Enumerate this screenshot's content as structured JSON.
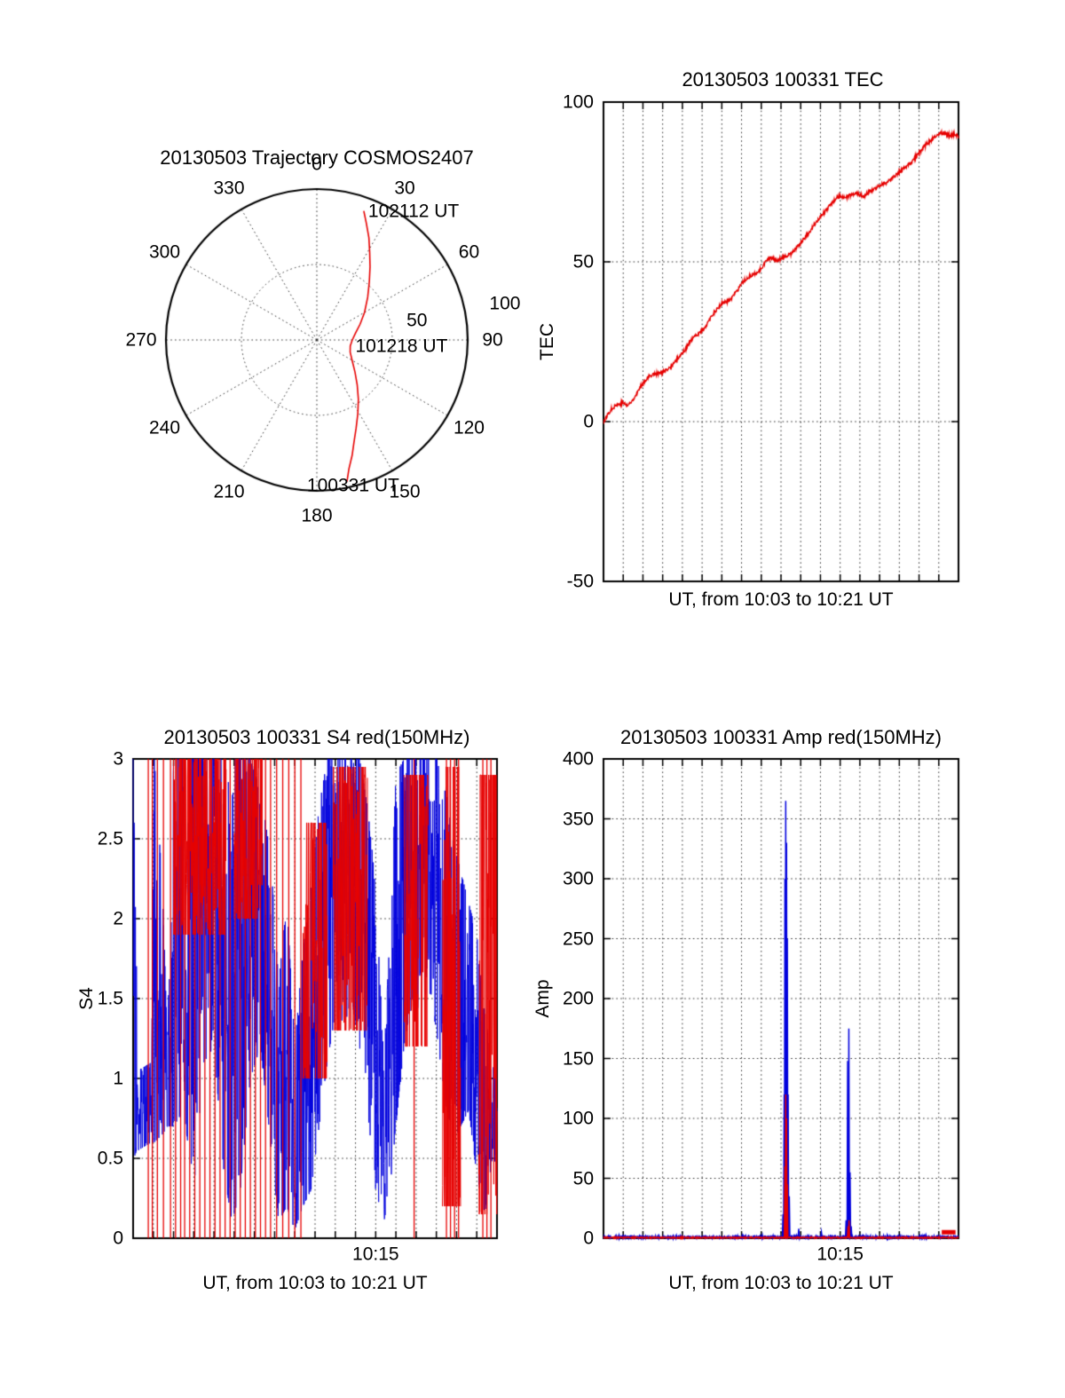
{
  "colors": {
    "red": "#e60000",
    "blue": "#0000dd",
    "grid": "#333333",
    "axis": "#000000",
    "background": "#ffffff"
  },
  "chart_data": [
    {
      "id": "trajectory",
      "type": "polar-trajectory",
      "title": "20130503 Trajectory COSMOS2407",
      "azimuth_ticks": [
        0,
        30,
        60,
        90,
        120,
        150,
        180,
        210,
        240,
        270,
        300,
        330
      ],
      "radial_ticks": [
        50,
        100
      ],
      "radial_max": 100,
      "trajectory": [
        [
          168,
          96
        ],
        [
          166,
          88
        ],
        [
          163,
          80
        ],
        [
          160,
          72
        ],
        [
          156,
          64
        ],
        [
          151,
          56
        ],
        [
          145,
          48
        ],
        [
          138,
          40
        ],
        [
          130,
          33
        ],
        [
          120,
          27
        ],
        [
          110,
          23.5
        ],
        [
          100,
          22.5
        ],
        [
          90,
          23.5
        ],
        [
          80,
          26
        ],
        [
          70,
          30.5
        ],
        [
          60,
          36.5
        ],
        [
          50,
          44
        ],
        [
          42,
          52
        ],
        [
          36,
          60
        ],
        [
          31,
          68
        ],
        [
          27,
          76
        ],
        [
          23,
          84
        ],
        [
          20,
          91
        ]
      ],
      "annotations": [
        {
          "azimuth": 20,
          "radius": 91,
          "label": "102112 UT"
        },
        {
          "azimuth": 100,
          "radius": 23,
          "label": "101218 UT"
        },
        {
          "azimuth": 168,
          "radius": 96,
          "label": "100331 UT"
        }
      ]
    },
    {
      "id": "tec",
      "type": "line",
      "title": "20130503 100331 TEC",
      "ylabel": "TEC",
      "xlabel": "UT, from 10:03 to 10:21 UT",
      "x_start": "10:03",
      "x_end": "10:21",
      "duration_minutes": 18,
      "ylim": [
        -50,
        100
      ],
      "yticks": [
        100,
        50,
        0,
        -50
      ],
      "grid_y": [
        50,
        0
      ],
      "xtick_labels": [],
      "noise_seed": 77,
      "series": [
        {
          "name": "TEC",
          "color": "red",
          "points": [
            [
              0,
              0
            ],
            [
              0.2,
              2
            ],
            [
              0.4,
              4
            ],
            [
              0.6,
              5
            ],
            [
              0.8,
              5.5
            ],
            [
              1.0,
              6
            ],
            [
              1.2,
              5
            ],
            [
              1.4,
              6
            ],
            [
              1.6,
              8
            ],
            [
              1.8,
              10
            ],
            [
              2.0,
              12
            ],
            [
              2.2,
              13.5
            ],
            [
              2.4,
              14.5
            ],
            [
              2.6,
              15
            ],
            [
              2.8,
              15
            ],
            [
              3.0,
              15.5
            ],
            [
              3.2,
              16
            ],
            [
              3.4,
              17
            ],
            [
              3.6,
              18.5
            ],
            [
              3.8,
              20
            ],
            [
              4.0,
              21.5
            ],
            [
              4.2,
              23
            ],
            [
              4.4,
              25
            ],
            [
              4.6,
              26.5
            ],
            [
              4.8,
              27.5
            ],
            [
              5.0,
              28.5
            ],
            [
              5.2,
              30
            ],
            [
              5.4,
              32
            ],
            [
              5.6,
              34
            ],
            [
              5.8,
              35.5
            ],
            [
              6.0,
              37
            ],
            [
              6.2,
              37.5
            ],
            [
              6.4,
              38
            ],
            [
              6.6,
              39.5
            ],
            [
              6.8,
              41
            ],
            [
              7.0,
              43
            ],
            [
              7.2,
              44.5
            ],
            [
              7.4,
              45.5
            ],
            [
              7.6,
              46
            ],
            [
              7.8,
              46.5
            ],
            [
              8.0,
              48
            ],
            [
              8.2,
              50
            ],
            [
              8.4,
              51
            ],
            [
              8.6,
              51
            ],
            [
              8.8,
              50.5
            ],
            [
              9.0,
              51
            ],
            [
              9.2,
              51.5
            ],
            [
              9.4,
              52
            ],
            [
              9.6,
              53
            ],
            [
              9.8,
              54.5
            ],
            [
              10.0,
              56
            ],
            [
              10.2,
              57.5
            ],
            [
              10.4,
              59
            ],
            [
              10.6,
              61
            ],
            [
              10.8,
              62.5
            ],
            [
              11.0,
              64
            ],
            [
              11.2,
              65.5
            ],
            [
              11.4,
              67
            ],
            [
              11.6,
              68.5
            ],
            [
              11.8,
              70
            ],
            [
              12.0,
              70.5
            ],
            [
              12.2,
              70
            ],
            [
              12.4,
              70.5
            ],
            [
              12.6,
              71
            ],
            [
              12.8,
              71.5
            ],
            [
              13.0,
              71
            ],
            [
              13.2,
              70.5
            ],
            [
              13.4,
              71.5
            ],
            [
              13.6,
              72.5
            ],
            [
              13.8,
              73
            ],
            [
              14.0,
              74
            ],
            [
              14.2,
              74.5
            ],
            [
              14.4,
              75
            ],
            [
              14.6,
              76
            ],
            [
              14.8,
              77
            ],
            [
              15.0,
              78
            ],
            [
              15.2,
              79
            ],
            [
              15.4,
              80
            ],
            [
              15.6,
              81
            ],
            [
              15.8,
              82.5
            ],
            [
              16.0,
              84
            ],
            [
              16.2,
              85.5
            ],
            [
              16.4,
              87
            ],
            [
              16.6,
              88
            ],
            [
              16.8,
              89
            ],
            [
              17.0,
              90
            ],
            [
              17.2,
              90.5
            ],
            [
              17.4,
              90
            ],
            [
              17.6,
              89.5
            ],
            [
              17.8,
              90
            ],
            [
              18.0,
              89
            ]
          ]
        }
      ]
    },
    {
      "id": "s4",
      "type": "noisy-line",
      "title": "20130503 100331 S4 red(150MHz)",
      "ylabel": "S4",
      "xlabel": "UT, from 10:03 to 10:21 UT",
      "x_start": "10:03",
      "x_end": "10:21",
      "duration_minutes": 18,
      "ylim": [
        0,
        3
      ],
      "yticks": [
        3,
        2.5,
        2,
        1.5,
        1,
        0.5,
        0
      ],
      "grid_y": [
        2.5,
        2,
        1.5,
        1,
        0.5
      ],
      "xtick_labels": [
        {
          "minute": 12,
          "label": "10:15"
        }
      ],
      "noise_seed": 20130503,
      "series": [
        {
          "name": "S4 150MHz (blue)",
          "color": "blue",
          "envelope": [
            [
              0,
              0.5,
              3
            ],
            [
              0.25,
              0.55,
              1.05
            ],
            [
              0.9,
              0.6,
              1.1
            ],
            [
              1.05,
              0.6,
              3
            ],
            [
              1.45,
              0.65,
              2.2
            ],
            [
              1.7,
              0.7,
              1.2
            ],
            [
              2.0,
              0.7,
              3
            ],
            [
              2.5,
              0.8,
              3
            ],
            [
              3.0,
              0.3,
              3
            ],
            [
              3.5,
              1.1,
              3
            ],
            [
              4.0,
              1.2,
              3
            ],
            [
              4.5,
              0.4,
              3
            ],
            [
              4.9,
              0.1,
              3
            ],
            [
              5.3,
              0.3,
              3
            ],
            [
              5.8,
              1.0,
              3
            ],
            [
              6.3,
              1.2,
              2.8
            ],
            [
              6.8,
              0.6,
              2.4
            ],
            [
              7.2,
              0.1,
              1.6
            ],
            [
              7.6,
              0.2,
              2.1
            ],
            [
              8.0,
              0.05,
              1.2
            ],
            [
              8.4,
              0.2,
              1.8
            ],
            [
              8.8,
              0.3,
              2.2
            ],
            [
              9.2,
              0.7,
              2.7
            ],
            [
              9.6,
              1.1,
              3
            ],
            [
              10.0,
              1.4,
              3
            ],
            [
              10.4,
              1.3,
              3
            ],
            [
              10.8,
              1.5,
              3
            ],
            [
              11.2,
              1.2,
              3
            ],
            [
              11.6,
              0.8,
              2.7
            ],
            [
              12.0,
              0.3,
              2.2
            ],
            [
              12.4,
              0.1,
              1.1
            ],
            [
              12.7,
              0.3,
              1.9
            ],
            [
              13.0,
              0.7,
              2.9
            ],
            [
              13.4,
              1.2,
              3
            ],
            [
              13.8,
              1.5,
              3
            ],
            [
              14.2,
              1.4,
              3
            ],
            [
              14.6,
              1.6,
              3
            ],
            [
              15.0,
              1.3,
              3
            ],
            [
              15.4,
              0.9,
              2.9
            ],
            [
              15.8,
              0.6,
              2.5
            ],
            [
              16.2,
              0.7,
              2.3
            ],
            [
              16.6,
              0.8,
              2.1
            ],
            [
              17.0,
              0.4,
              1.9
            ],
            [
              17.4,
              0.15,
              1.4
            ],
            [
              17.7,
              0.45,
              1.15
            ],
            [
              18,
              0.5,
              1.0
            ]
          ]
        },
        {
          "name": "S4 150MHz (red)",
          "color": "red",
          "bands": [
            [
              2.0,
              4.6,
              1.9,
              3
            ],
            [
              5.0,
              6.4,
              2.0,
              3
            ],
            [
              8.4,
              9.6,
              1.0,
              2.6
            ],
            [
              9.9,
              11.6,
              1.3,
              2.95
            ],
            [
              13.4,
              14.6,
              1.2,
              2.9
            ],
            [
              15.3,
              16.2,
              0.2,
              2.95
            ],
            [
              17.1,
              18.0,
              0.15,
              2.9
            ]
          ],
          "full_spikes": [
            0.75,
            0.95,
            1.2,
            1.5,
            1.85,
            2.1,
            2.35,
            2.55,
            2.8,
            3.05,
            3.3,
            3.55,
            3.8,
            4.05,
            4.3,
            4.55,
            4.8,
            5.05,
            5.3,
            5.55,
            5.8,
            6.05,
            6.3,
            6.55,
            6.8,
            7.1,
            7.4,
            7.7,
            8.0,
            8.3,
            13.9,
            15.5,
            15.7,
            15.9,
            16.1,
            17.3,
            17.5,
            17.7
          ]
        }
      ]
    },
    {
      "id": "amp",
      "type": "line",
      "title": "20130503 100331 Amp red(150MHz)",
      "ylabel": "Amp",
      "xlabel": "UT, from 10:03 to 10:21 UT",
      "x_start": "10:03",
      "x_end": "10:21",
      "duration_minutes": 18,
      "ylim": [
        0,
        400
      ],
      "yticks": [
        400,
        350,
        300,
        250,
        200,
        150,
        100,
        50,
        0
      ],
      "grid_y": [
        350,
        300,
        250,
        200,
        150,
        100,
        50
      ],
      "xtick_labels": [
        {
          "minute": 12,
          "label": "10:15"
        }
      ],
      "noise_seed": 4242,
      "series": [
        {
          "name": "Amp 150MHz (blue)",
          "color": "blue",
          "baseline_max": 2,
          "spikes": [
            [
              9.1,
              20
            ],
            [
              9.16,
              120
            ],
            [
              9.2,
              300
            ],
            [
              9.24,
              365
            ],
            [
              9.28,
              330
            ],
            [
              9.32,
              250
            ],
            [
              9.36,
              120
            ],
            [
              9.42,
              35
            ],
            [
              9.9,
              8
            ],
            [
              11.05,
              5
            ],
            [
              12.3,
              15
            ],
            [
              12.38,
              148
            ],
            [
              12.44,
              175
            ],
            [
              12.5,
              55
            ],
            [
              12.56,
              10
            ]
          ]
        },
        {
          "name": "Amp 150MHz (red)",
          "color": "red",
          "baseline_max": 1,
          "spikes": [
            [
              9.2,
              60
            ],
            [
              9.24,
              120
            ],
            [
              9.28,
              100
            ],
            [
              9.32,
              45
            ],
            [
              12.4,
              10
            ],
            [
              12.45,
              15
            ]
          ],
          "flat_segments": [
            [
              17.15,
              17.85,
              5
            ]
          ]
        }
      ]
    }
  ]
}
